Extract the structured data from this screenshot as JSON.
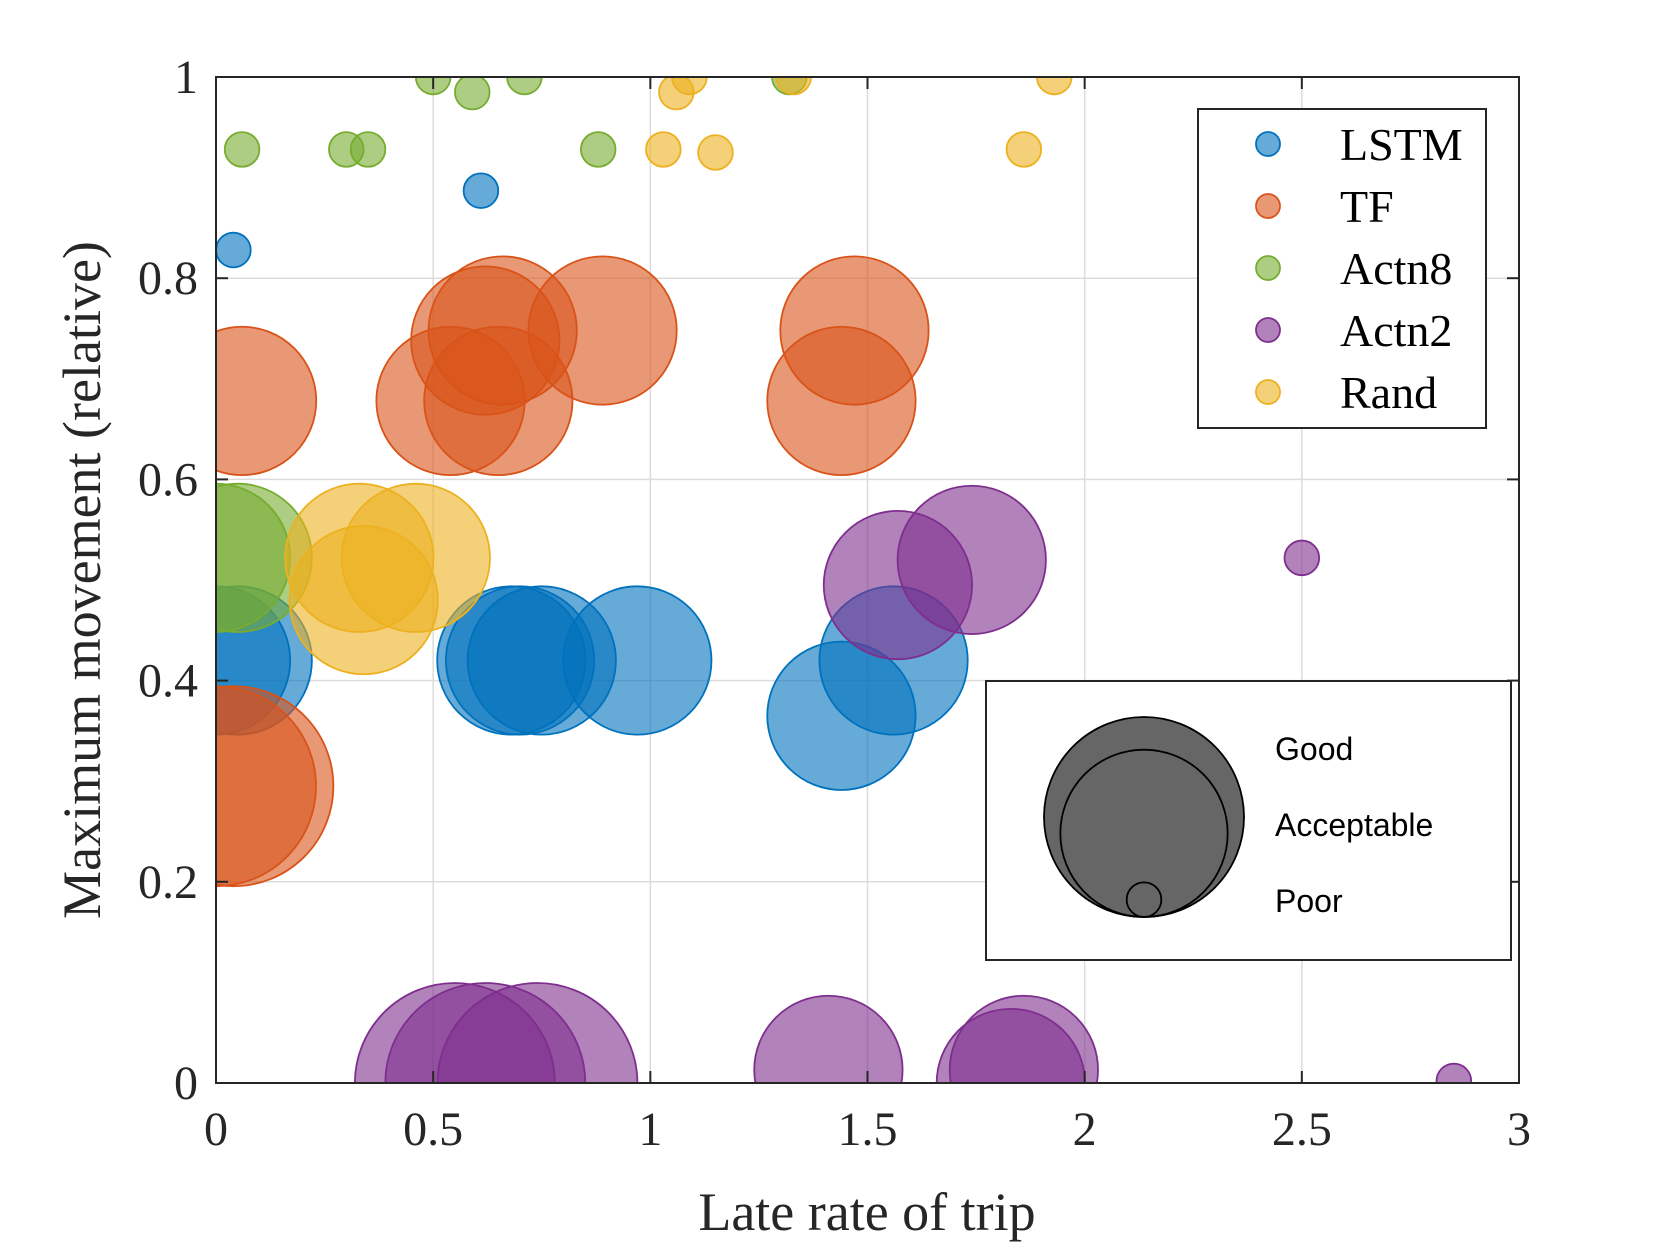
{
  "chart_data": {
    "type": "scatter",
    "title": "",
    "xlabel": "Late rate of trip",
    "ylabel": "Maximum movement (relative)",
    "xlim": [
      0,
      3
    ],
    "ylim": [
      0,
      1
    ],
    "xticks": [
      "0",
      "0.5",
      "1",
      "1.5",
      "2",
      "2.5",
      "3"
    ],
    "yticks": [
      "0",
      "0.2",
      "0.4",
      "0.6",
      "0.8",
      "1"
    ],
    "grid": true,
    "legend_position": "top-right",
    "size_scale": {
      "Good": 100,
      "Acceptable": 70,
      "Poor": 3
    },
    "size_legend": {
      "position": "lower-right",
      "entries": [
        {
          "label": "Good",
          "size": 100
        },
        {
          "label": "Acceptable",
          "size": 70
        },
        {
          "label": "Poor",
          "size": 3
        }
      ]
    },
    "series": [
      {
        "name": "LSTM",
        "color": "#0072BD",
        "points": [
          {
            "x": 0.0,
            "y": 0.42,
            "size": 55
          },
          {
            "x": 0.05,
            "y": 0.42,
            "size": 55
          },
          {
            "x": 0.68,
            "y": 0.42,
            "size": 55
          },
          {
            "x": 0.7,
            "y": 0.42,
            "size": 55
          },
          {
            "x": 0.75,
            "y": 0.42,
            "size": 55
          },
          {
            "x": 0.97,
            "y": 0.42,
            "size": 55
          },
          {
            "x": 1.56,
            "y": 0.42,
            "size": 55
          },
          {
            "x": 1.44,
            "y": 0.365,
            "size": 55
          },
          {
            "x": 0.04,
            "y": 0.828,
            "size": 3
          },
          {
            "x": 0.61,
            "y": 0.887,
            "size": 3
          }
        ]
      },
      {
        "name": "TF",
        "color": "#D95319",
        "points": [
          {
            "x": 0.06,
            "y": 0.678,
            "size": 55
          },
          {
            "x": 0.54,
            "y": 0.678,
            "size": 55
          },
          {
            "x": 0.65,
            "y": 0.678,
            "size": 55
          },
          {
            "x": 0.62,
            "y": 0.738,
            "size": 55
          },
          {
            "x": 0.66,
            "y": 0.748,
            "size": 55
          },
          {
            "x": 0.89,
            "y": 0.748,
            "size": 55
          },
          {
            "x": 1.44,
            "y": 0.678,
            "size": 55
          },
          {
            "x": 1.47,
            "y": 0.748,
            "size": 55
          },
          {
            "x": 0.0,
            "y": 0.295,
            "size": 100
          },
          {
            "x": 0.04,
            "y": 0.295,
            "size": 100
          }
        ]
      },
      {
        "name": "Actn8",
        "color": "#77AC30",
        "points": [
          {
            "x": 0.0,
            "y": 0.522,
            "size": 55
          },
          {
            "x": 0.05,
            "y": 0.522,
            "size": 55
          },
          {
            "x": 0.06,
            "y": 0.928,
            "size": 3
          },
          {
            "x": 0.3,
            "y": 0.928,
            "size": 3
          },
          {
            "x": 0.35,
            "y": 0.928,
            "size": 3
          },
          {
            "x": 0.88,
            "y": 0.928,
            "size": 3
          },
          {
            "x": 0.5,
            "y": 1.0,
            "size": 3
          },
          {
            "x": 0.59,
            "y": 0.985,
            "size": 3
          },
          {
            "x": 0.71,
            "y": 1.0,
            "size": 3
          },
          {
            "x": 1.32,
            "y": 1.0,
            "size": 3
          }
        ]
      },
      {
        "name": "Actn2",
        "color": "#7E2F8E",
        "points": [
          {
            "x": 0.55,
            "y": 0.0,
            "size": 100
          },
          {
            "x": 0.62,
            "y": 0.0,
            "size": 100
          },
          {
            "x": 0.74,
            "y": 0.0,
            "size": 100
          },
          {
            "x": 1.41,
            "y": 0.013,
            "size": 55
          },
          {
            "x": 1.86,
            "y": 0.013,
            "size": 55
          },
          {
            "x": 1.83,
            "y": 0.0,
            "size": 55
          },
          {
            "x": 1.57,
            "y": 0.495,
            "size": 55
          },
          {
            "x": 1.74,
            "y": 0.52,
            "size": 55
          },
          {
            "x": 2.5,
            "y": 0.522,
            "size": 3
          },
          {
            "x": 2.85,
            "y": 0.002,
            "size": 3
          }
        ]
      },
      {
        "name": "Rand",
        "color": "#EDB120",
        "points": [
          {
            "x": 0.33,
            "y": 0.522,
            "size": 55
          },
          {
            "x": 0.46,
            "y": 0.522,
            "size": 55
          },
          {
            "x": 0.34,
            "y": 0.48,
            "size": 55
          },
          {
            "x": 1.03,
            "y": 0.928,
            "size": 3
          },
          {
            "x": 1.15,
            "y": 0.925,
            "size": 3
          },
          {
            "x": 1.06,
            "y": 0.985,
            "size": 3
          },
          {
            "x": 1.09,
            "y": 1.0,
            "size": 3
          },
          {
            "x": 1.33,
            "y": 1.0,
            "size": 3
          },
          {
            "x": 1.86,
            "y": 0.928,
            "size": 3
          },
          {
            "x": 1.93,
            "y": 1.0,
            "size": 3
          }
        ]
      }
    ]
  }
}
